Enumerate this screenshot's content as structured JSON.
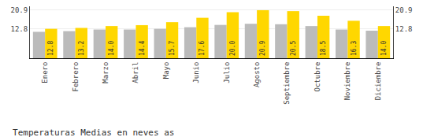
{
  "chart_data": {
    "type": "bar",
    "title": "Temperaturas Medias en neves as",
    "categories": [
      "Enero",
      "Febrero",
      "Marzo",
      "Abril",
      "Mayo",
      "Junio",
      "Julio",
      "Agosto",
      "Septiembre",
      "Octubre",
      "Noviembre",
      "Diciembre"
    ],
    "series": [
      {
        "color": "#BBBBBB",
        "values": [
          11.5,
          11.8,
          12.5,
          12.5,
          12.8,
          13.5,
          14.5,
          15.0,
          14.8,
          14.0,
          12.5,
          12.0
        ]
      },
      {
        "color": "#FFD700",
        "values": [
          12.8,
          13.2,
          14.0,
          14.4,
          15.7,
          17.6,
          20.0,
          20.9,
          20.5,
          18.5,
          16.3,
          14.0
        ],
        "value_labels": [
          "12.8",
          "13.2",
          "14.0",
          "14.4",
          "15.7",
          "17.6",
          "20.0",
          "20.9",
          "20.5",
          "18.5",
          "16.3",
          "14.0"
        ],
        "data_labels": true
      }
    ],
    "ylim": [
      0,
      22.6
    ],
    "yticks": [
      12.8,
      20.9
    ],
    "y2lim": [
      0,
      22.6
    ],
    "y2ticks": [
      12.8,
      20.9
    ],
    "grid": true
  }
}
